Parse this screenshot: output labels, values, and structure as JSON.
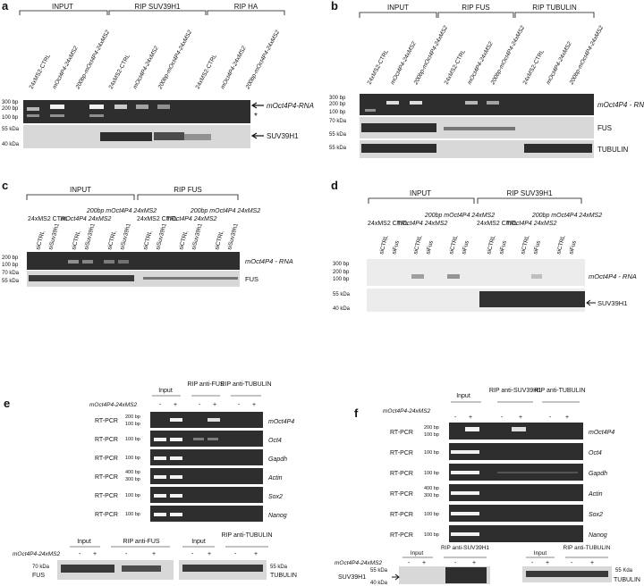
{
  "panels": [
    {
      "letter": "a",
      "groups": [
        "INPUT",
        "RIP SUV39H1",
        "RIP HA"
      ],
      "lanes": [
        "24xMS2-CTRL",
        "mOct4P4-24xMS2",
        "200bp-mOct4P4-24xMS2",
        "24xMS2-CTRL",
        "mOct4P4-24xMS2",
        "200bp-mOct4P4-24xMS2",
        "24xMS2-CTRL",
        "mOct4P4-24xMS2",
        "200bp-mOct4P4-24xMS2"
      ],
      "markers": [
        "300 bp",
        "200 bp",
        "100 bp",
        "55 kDa",
        "40 kDa"
      ],
      "labels": [
        "mOct4P4-RNA",
        "*",
        "SUV39H1"
      ]
    },
    {
      "letter": "b",
      "groups": [
        "INPUT",
        "RIP FUS",
        "RIP TUBULIN"
      ],
      "lanes": [
        "24xMS2-CTRL",
        "mOct4P4-24xMS2",
        "200bp-mOct4P4-24xMS2",
        "24xMS2-CTRL",
        "mOct4P4-24xMS2",
        "200bp-mOct4P4-24xMS2",
        "24xMS2-CTRL",
        "mOct4P4-24xMS2",
        "200bp-mOct4P4-24xMS2"
      ],
      "markers": [
        "300 bp",
        "200 bp",
        "100 bp",
        "70 kDa",
        "55 kDa",
        "55 kDa"
      ],
      "labels": [
        "mOct4P4 - RNA",
        "FUS",
        "TUBULIN"
      ]
    },
    {
      "letter": "c",
      "groups": [
        "INPUT",
        "RIP FUS"
      ],
      "conditions": [
        "24xMS2 CTRL",
        "mOct4P4 24xMS2",
        "200bp mOct4P4 24xMS2"
      ],
      "lanes": [
        "siCTRL",
        "siSuv39h1",
        "siCTRL",
        "siSuv39h1",
        "siCTRL",
        "siSuv39h1"
      ],
      "markers": [
        "200 bp",
        "100 bp",
        "70 kDa",
        "55 kDa"
      ],
      "labels": [
        "mOct4P4 - RNA",
        "FUS"
      ]
    },
    {
      "letter": "d",
      "groups": [
        "INPUT",
        "RIP SUV39H1"
      ],
      "conditions": [
        "24xMS2 CTRL",
        "mOct4P4 24xMS2",
        "200bp mOct4P4 24xMS2"
      ],
      "lanes": [
        "siCTRL",
        "siFus",
        "siCTRL",
        "siFus",
        "siCTRL",
        "siFus"
      ],
      "markers": [
        "300 bp",
        "200 bp",
        "100 bp",
        "55 kDa",
        "40 kDa"
      ],
      "labels": [
        "mOct4P4 - RNA",
        "SUV39H1"
      ]
    },
    {
      "letter": "e",
      "groups": [
        "Input",
        "RIP anti-FUS",
        "RIP anti-TUBULIN"
      ],
      "construct": "mOct4P4-24xMS2",
      "signs": [
        "-",
        "+",
        "-",
        "+",
        "-",
        "+"
      ],
      "method": "RT-PCR",
      "genes": [
        "mOct4P4",
        "Oct4",
        "Gapdh",
        "Actin",
        "Sox2",
        "Nanog"
      ],
      "gene_markers": [
        "200 bp",
        "100 bp",
        "100 bp",
        "100 bp",
        "100 bp",
        "400 bp",
        "300 bp",
        "100 bp",
        "100 bp"
      ],
      "blot_groups": [
        "Input",
        "RIP anti-FUS",
        "Input",
        "RIP anti-TUBULIN"
      ],
      "blot_markers": [
        "70 kDa",
        "55 kDa"
      ],
      "blot_labels": [
        "FUS",
        "TUBULIN"
      ]
    },
    {
      "letter": "f",
      "groups": [
        "Input",
        "RIP anti-SUV39H1",
        "RIP anti-TUBULIN"
      ],
      "construct": "mOct4P4-24xMS2",
      "signs": [
        "-",
        "+",
        "-",
        "+",
        "-",
        "+"
      ],
      "method": "RT-PCR",
      "genes": [
        "mOct4P4",
        "Oct4",
        "Gapdh",
        "Actin",
        "Sox2",
        "Nanog"
      ],
      "gene_markers": [
        "200 bp",
        "100 bp",
        "100 bp",
        "100 bp",
        "100 bp",
        "400 bp",
        "300 bp",
        "100 bp",
        "100 bp"
      ],
      "blot_groups": [
        "Input",
        "RIP anti-SUV39H1",
        "Input",
        "RIP anti-TUBULIN"
      ],
      "blot_markers": [
        "55 kDa",
        "40 kDa",
        "55 Kda"
      ],
      "blot_labels": [
        "SUV39H1",
        "TUBULIN"
      ]
    }
  ]
}
